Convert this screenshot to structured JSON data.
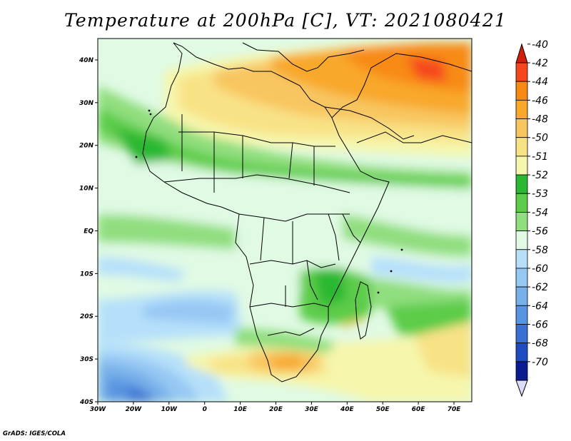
{
  "title": "Temperature at 200hPa [C], VT: 2021080421",
  "credit": "GrADS: IGES/COLA",
  "map": {
    "lon_range": [
      -30,
      75
    ],
    "lat_range": [
      -40,
      45
    ],
    "lon_ticks": [
      {
        "value": -30,
        "label": "30W"
      },
      {
        "value": -20,
        "label": "20W"
      },
      {
        "value": -10,
        "label": "10W"
      },
      {
        "value": 0,
        "label": "0"
      },
      {
        "value": 10,
        "label": "10E"
      },
      {
        "value": 20,
        "label": "20E"
      },
      {
        "value": 30,
        "label": "30E"
      },
      {
        "value": 40,
        "label": "40E"
      },
      {
        "value": 50,
        "label": "50E"
      },
      {
        "value": 60,
        "label": "60E"
      },
      {
        "value": 70,
        "label": "70E"
      }
    ],
    "lat_ticks": [
      {
        "value": 40,
        "label": "40N"
      },
      {
        "value": 30,
        "label": "30N"
      },
      {
        "value": 20,
        "label": "20N"
      },
      {
        "value": 10,
        "label": "10N"
      },
      {
        "value": 0,
        "label": "EQ"
      },
      {
        "value": -10,
        "label": "10S"
      },
      {
        "value": -20,
        "label": "20S"
      },
      {
        "value": -30,
        "label": "30S"
      },
      {
        "value": -40,
        "label": "40S"
      }
    ]
  },
  "colorbar": {
    "labels": [
      "-40",
      "-42",
      "-44",
      "-46",
      "-48",
      "-50",
      "-51",
      "-52",
      "-53",
      "-54",
      "-56",
      "-58",
      "-60",
      "-62",
      "-64",
      "-66",
      "-68",
      "-70"
    ],
    "colors": [
      "#f6461e",
      "#f88a14",
      "#f8a82a",
      "#f8c660",
      "#f8e286",
      "#f6f6ac",
      "#2ab832",
      "#5ccc4a",
      "#90de7e",
      "#e0fae4",
      "#b6e0fa",
      "#96c8f4",
      "#78b0ea",
      "#5894e0",
      "#3a70d2",
      "#1e4cc0",
      "#0c1c90"
    ],
    "top_arrow_color": "#d41e0c",
    "bottom_arrow_color": "#dcdcfa"
  }
}
